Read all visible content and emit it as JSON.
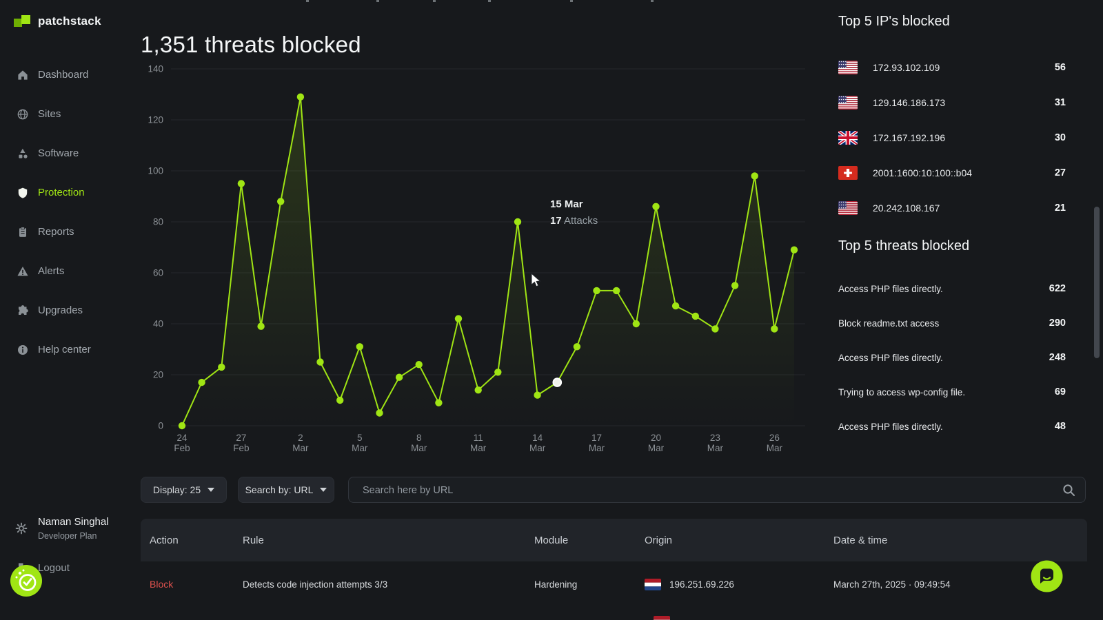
{
  "brand": {
    "name": "patchstack"
  },
  "header": {
    "title": "1,351 threats blocked"
  },
  "sidebar": {
    "items": [
      {
        "label": "Dashboard",
        "icon": "home-icon",
        "active": false
      },
      {
        "label": "Sites",
        "icon": "globe-icon",
        "active": false
      },
      {
        "label": "Software",
        "icon": "shapes-icon",
        "active": false
      },
      {
        "label": "Protection",
        "icon": "shield-icon",
        "active": true
      },
      {
        "label": "Reports",
        "icon": "clipboard-icon",
        "active": false
      },
      {
        "label": "Alerts",
        "icon": "alert-triangle-icon",
        "active": false
      },
      {
        "label": "Upgrades",
        "icon": "puzzle-icon",
        "active": false
      },
      {
        "label": "Help center",
        "icon": "info-icon",
        "active": false
      }
    ],
    "user": {
      "name": "Naman Singhal",
      "plan": "Developer Plan"
    },
    "logout_label": "Logout"
  },
  "chart_data": {
    "type": "line",
    "title": "1,351 threats blocked",
    "series_name": "Attacks",
    "x": [
      "24 Feb",
      "25 Feb",
      "26 Feb",
      "27 Feb",
      "28 Feb",
      "1 Mar",
      "2 Mar",
      "3 Mar",
      "4 Mar",
      "5 Mar",
      "6 Mar",
      "7 Mar",
      "8 Mar",
      "9 Mar",
      "10 Mar",
      "11 Mar",
      "12 Mar",
      "13 Mar",
      "14 Mar",
      "15 Mar",
      "16 Mar",
      "17 Mar",
      "18 Mar",
      "19 Mar",
      "20 Mar",
      "21 Mar",
      "22 Mar",
      "23 Mar",
      "24 Mar",
      "25 Mar",
      "26 Mar",
      "27 Mar"
    ],
    "values": [
      0,
      17,
      23,
      95,
      39,
      88,
      129,
      25,
      10,
      31,
      5,
      19,
      24,
      9,
      42,
      14,
      21,
      80,
      12,
      17,
      31,
      53,
      53,
      40,
      86,
      47,
      43,
      38,
      55,
      98,
      38,
      69
    ],
    "ylim": [
      0,
      140
    ],
    "yticks": [
      0,
      20,
      40,
      60,
      80,
      100,
      120,
      140
    ],
    "xtick_every": 3,
    "grid": "horizontal",
    "xlabel": "",
    "ylabel": "",
    "highlight": {
      "index": 19,
      "label": "15 Mar",
      "value": "17",
      "unit": "Attacks"
    }
  },
  "right_panel": {
    "ips": {
      "title": "Top 5 IP's blocked",
      "rows": [
        {
          "flag": "us",
          "ip": "172.93.102.109",
          "count": "56"
        },
        {
          "flag": "us",
          "ip": "129.146.186.173",
          "count": "31"
        },
        {
          "flag": "gb",
          "ip": "172.167.192.196",
          "count": "30"
        },
        {
          "flag": "ch",
          "ip": "2001:1600:10:100::b04",
          "count": "27"
        },
        {
          "flag": "us",
          "ip": "20.242.108.167",
          "count": "21"
        }
      ]
    },
    "threats": {
      "title": "Top 5 threats blocked",
      "rows": [
        {
          "name": "Access PHP files directly.",
          "count": "622"
        },
        {
          "name": "Block readme.txt access",
          "count": "290"
        },
        {
          "name": "Access PHP files directly.",
          "count": "248"
        },
        {
          "name": "Trying to access wp-config file.",
          "count": "69"
        },
        {
          "name": "Access PHP files directly.",
          "count": "48"
        }
      ]
    }
  },
  "filters": {
    "display": "Display: 25",
    "search_by": "Search by: URL",
    "search_placeholder": "Search here by URL"
  },
  "table": {
    "headers": [
      "Action",
      "Rule",
      "Module",
      "Origin",
      "Date & time"
    ],
    "rows": [
      {
        "action": "Block",
        "rule": "Detects code injection attempts 3/3",
        "module": "Hardening",
        "flag": "nl",
        "origin": "196.251.69.226",
        "datetime": "March 27th, 2025 · 09:49:54"
      }
    ],
    "partial_row": {
      "flag": "nl"
    }
  },
  "colors": {
    "accent": "#a0e514",
    "accent_dark": "#6faf02",
    "action_block": "#e0524e",
    "grid": "#25282d",
    "axis_text": "#8b9095"
  }
}
